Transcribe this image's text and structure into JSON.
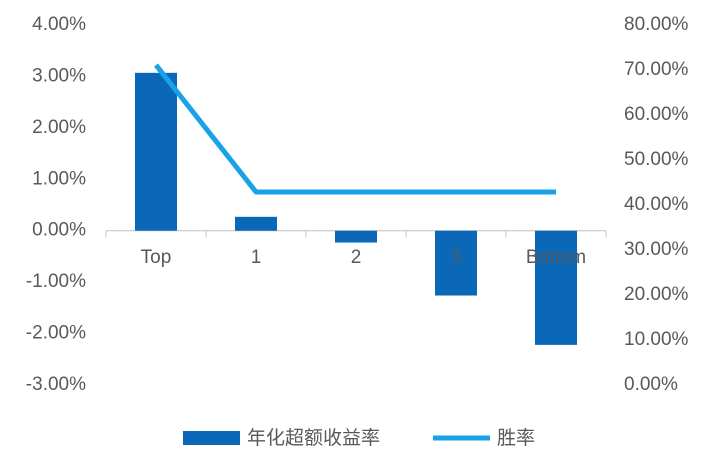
{
  "chart_data": {
    "type": "combo",
    "categories": [
      "Top",
      "1",
      "2",
      "3",
      "Bottom"
    ],
    "series": [
      {
        "name": "年化超额收益率",
        "type": "bar",
        "color": "#0b67b8",
        "values": [
          3.07,
          0.27,
          -0.23,
          -1.26,
          -2.22
        ]
      },
      {
        "name": "胜率",
        "type": "line",
        "axis": "y2",
        "color": "#19a2e6",
        "values": [
          71.1,
          42.9,
          42.9,
          42.9,
          42.9
        ]
      }
    ],
    "ylim": [
      -3,
      4
    ],
    "yticks": [
      {
        "value": -3,
        "label": "-3.00%"
      },
      {
        "value": -2,
        "label": "-2.00%"
      },
      {
        "value": -1,
        "label": "-1.00%"
      },
      {
        "value": 0,
        "label": "0.00%"
      },
      {
        "value": 1,
        "label": "1.00%"
      },
      {
        "value": 2,
        "label": "2.00%"
      },
      {
        "value": 3,
        "label": "3.00%"
      },
      {
        "value": 4,
        "label": "4.00%"
      }
    ],
    "y2lim": [
      0,
      80
    ],
    "y2ticks": [
      {
        "value": 0,
        "label": "0.00%"
      },
      {
        "value": 10,
        "label": "10.00%"
      },
      {
        "value": 20,
        "label": "20.00%"
      },
      {
        "value": 30,
        "label": "30.00%"
      },
      {
        "value": 40,
        "label": "40.00%"
      },
      {
        "value": 50,
        "label": "50.00%"
      },
      {
        "value": 60,
        "label": "60.00%"
      },
      {
        "value": 70,
        "label": "70.00%"
      },
      {
        "value": 80,
        "label": "80.00%"
      }
    ],
    "legend": "bottom"
  }
}
